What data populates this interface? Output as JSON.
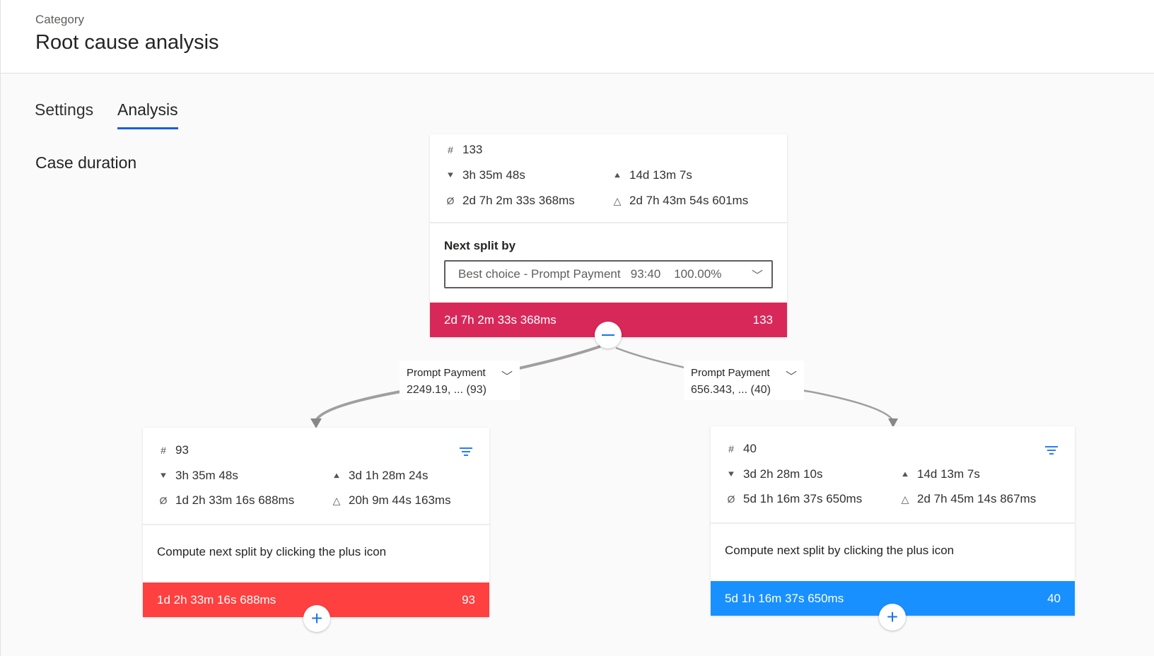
{
  "header": {
    "category": "Category",
    "title": "Root cause analysis"
  },
  "tabs": [
    {
      "label": "Settings"
    },
    {
      "label": "Analysis",
      "active": true
    }
  ],
  "section_title": "Case duration",
  "colors": {
    "root_bar": "#d8285a",
    "left_bar": "#ff4040",
    "right_bar": "#1890ff",
    "accent": "#1a5ce6"
  },
  "root": {
    "count": "133",
    "min": "3h 35m 48s",
    "max": "14d 13m 7s",
    "avg": "2d 7h 2m 33s 368ms",
    "stddev": "2d 7h 43m 54s 601ms",
    "split_label": "Next split by",
    "split_value": "Best choice - Prompt Payment   93:40    100.00%",
    "bar_value": "2d 7h 2m 33s 368ms",
    "bar_count": "133"
  },
  "edges": [
    {
      "title": "Prompt Payment",
      "value": "2249.19, ... (93)"
    },
    {
      "title": "Prompt Payment",
      "value": "656.343, ... (40)"
    }
  ],
  "children": [
    {
      "count": "93",
      "min": "3h 35m 48s",
      "max": "3d 1h 28m 24s",
      "avg": "1d 2h 33m 16s 688ms",
      "stddev": "20h 9m 44s 163ms",
      "hint": "Compute next split by clicking the plus icon",
      "bar_value": "1d 2h 33m 16s 688ms",
      "bar_count": "93"
    },
    {
      "count": "40",
      "min": "3d 2h 28m 10s",
      "max": "14d 13m 7s",
      "avg": "5d 1h 16m 37s 650ms",
      "stddev": "2d 7h 45m 14s 867ms",
      "hint": "Compute next split by clicking the plus icon",
      "bar_value": "5d 1h 16m 37s 650ms",
      "bar_count": "40"
    }
  ],
  "icons": {
    "count": "hash-icon",
    "min": "min-icon",
    "max": "max-icon",
    "avg": "average-icon",
    "stddev": "delta-icon",
    "collapse": "minus-icon",
    "expand": "plus-icon",
    "filter": "filter-icon",
    "dropdown": "chevron-down-icon"
  }
}
